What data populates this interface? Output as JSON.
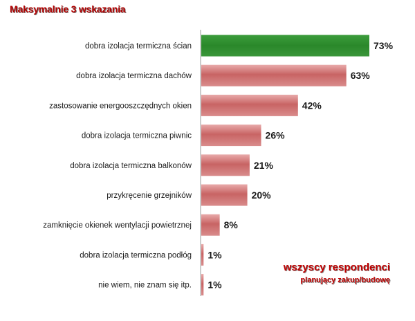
{
  "header": {
    "title": "Maksymalnie 3 wskazania"
  },
  "legend": {
    "main": "wszyscy respondenci",
    "sub": "planujący zakup/budowę"
  },
  "colors": {
    "highlight_bar": "#2f8f2f",
    "bar": "#c86464",
    "accent_text": "#c00000"
  },
  "chart_data": {
    "type": "bar",
    "orientation": "horizontal",
    "title": "Maksymalnie 3 wskazania",
    "xlabel": "",
    "ylabel": "",
    "xlim": [
      0,
      73
    ],
    "categories": [
      "dobra izolacja termiczna ścian",
      "dobra izolacja termiczna dachów",
      "zastosowanie energooszczędnych okien",
      "dobra izolacja termiczna piwnic",
      "dobra izolacja termiczna balkonów",
      "przykręcenie grzejników",
      "zamknięcie okienek wentylacji powietrznej",
      "dobra izolacja termiczna podłóg",
      "nie wiem, nie znam się itp."
    ],
    "values": [
      73,
      63,
      42,
      26,
      21,
      20,
      8,
      1,
      1
    ],
    "value_labels": [
      "73%",
      "63%",
      "42%",
      "26%",
      "21%",
      "20%",
      "8%",
      "1%",
      "1%"
    ],
    "highlighted_index": 0,
    "grid": false
  }
}
